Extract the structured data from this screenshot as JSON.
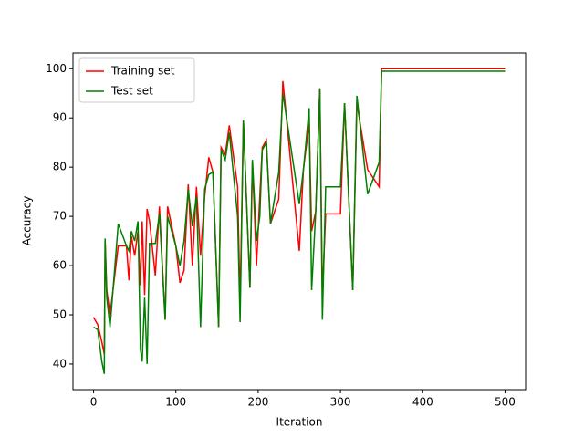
{
  "chart_data": {
    "type": "line",
    "x_label": "Iteration",
    "y_label": "Accuracy",
    "x": [
      0,
      5,
      10,
      13,
      14,
      16,
      20,
      30,
      40,
      43,
      46,
      50,
      54,
      57,
      59,
      62,
      65,
      68,
      75,
      80,
      87,
      90,
      100,
      105,
      110,
      115,
      120,
      125,
      130,
      135,
      140,
      145,
      152,
      155,
      160,
      165,
      175,
      178,
      182,
      190,
      193,
      198,
      202,
      205,
      210,
      215,
      225,
      230,
      250,
      255,
      262,
      265,
      270,
      275,
      278,
      282,
      300,
      305,
      315,
      320,
      333,
      347,
      350,
      500
    ],
    "series": [
      {
        "name": "Training set",
        "color": "#ff0000",
        "values": [
          49.5,
          48,
          44.5,
          42,
          65,
          55,
          50,
          64,
          64,
          57,
          66,
          62,
          67,
          56,
          69,
          54,
          71.5,
          69,
          58,
          72,
          49,
          72,
          64,
          56.5,
          59,
          76.5,
          60,
          76,
          62,
          74,
          82,
          79,
          47.5,
          84,
          82.5,
          88.5,
          76,
          52,
          89.5,
          55.5,
          81,
          60,
          74,
          84,
          85.5,
          68.5,
          73.5,
          97.5,
          63,
          79.5,
          89,
          67,
          71,
          96,
          54,
          70.5,
          70.5,
          93,
          55,
          93,
          79.5,
          76,
          100,
          100
        ]
      },
      {
        "name": "Test set",
        "color": "#008000",
        "values": [
          47.5,
          47,
          40.5,
          38,
          65.5,
          53.5,
          47.5,
          68.5,
          64,
          63,
          67,
          65,
          69,
          43,
          40.5,
          53.5,
          40,
          64.5,
          64.5,
          70.5,
          49,
          70,
          64,
          60,
          65,
          75.5,
          68,
          74,
          47.5,
          75.5,
          78.5,
          79,
          47.5,
          83.5,
          81.5,
          87,
          70,
          48.5,
          89.5,
          55.5,
          81.5,
          65,
          70,
          83.5,
          85,
          68.5,
          79,
          95,
          72.5,
          79.5,
          92,
          55,
          71,
          96,
          49,
          76,
          76,
          93,
          55,
          94.5,
          74.5,
          81,
          99.5,
          99.5
        ]
      }
    ],
    "xlim": [
      -25,
      525
    ],
    "ylim": [
      34.8,
      103.2
    ],
    "xticks": [
      0,
      100,
      200,
      300,
      400,
      500
    ],
    "yticks": [
      40,
      50,
      60,
      70,
      80,
      90,
      100
    ],
    "legend": "upper left"
  }
}
